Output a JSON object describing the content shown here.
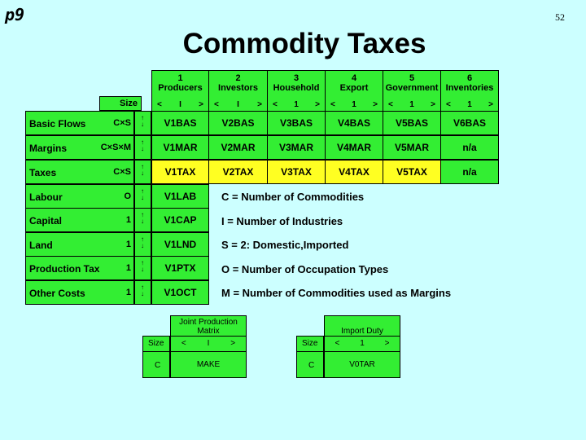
{
  "corner_label": "p9",
  "page_number": "52",
  "title": "Commodity Taxes",
  "size_label": "Size",
  "columns": [
    {
      "num": "1",
      "name": "Producers",
      "dim": "I"
    },
    {
      "num": "2",
      "name": "Investors",
      "dim": "I"
    },
    {
      "num": "3",
      "name": "Household",
      "dim": "1"
    },
    {
      "num": "4",
      "name": "Export",
      "dim": "1"
    },
    {
      "num": "5",
      "name": "Government",
      "dim": "1"
    },
    {
      "num": "6",
      "name": "Inventories",
      "dim": "1"
    }
  ],
  "rows": [
    {
      "label": "Basic Flows",
      "size": "C×S",
      "cells": [
        "V1BAS",
        "V2BAS",
        "V3BAS",
        "V4BAS",
        "V5BAS",
        "V6BAS"
      ]
    },
    {
      "label": "Margins",
      "size": "C×S×M",
      "cells": [
        "V1MAR",
        "V2MAR",
        "V3MAR",
        "V4MAR",
        "V5MAR",
        "n/a"
      ]
    },
    {
      "label": "Taxes",
      "size": "C×S",
      "cells": [
        "V1TAX",
        "V2TAX",
        "V3TAX",
        "V4TAX",
        "V5TAX",
        "n/a"
      ],
      "highlight": [
        0,
        1,
        2,
        3,
        4
      ]
    },
    {
      "label": "Labour",
      "size": "O",
      "cells": [
        "V1LAB"
      ]
    },
    {
      "label": "Capital",
      "size": "1",
      "cells": [
        "V1CAP"
      ]
    },
    {
      "label": "Land",
      "size": "1",
      "cells": [
        "V1LND"
      ]
    },
    {
      "label": "Production Tax",
      "size": "1",
      "cells": [
        "V1PTX"
      ]
    },
    {
      "label": "Other Costs",
      "size": "1",
      "cells": [
        "V1OCT"
      ]
    }
  ],
  "legend": [
    "C = Number of Commodities",
    "I  = Number of Industries",
    "S = 2: Domestic,Imported",
    "O = Number of Occupation Types",
    "M  =  Number of Commodities used as Margins"
  ],
  "make_matrix": {
    "title": "Joint Production Matrix",
    "size": "Size",
    "dim": "I",
    "row_size": "C",
    "cell": "MAKE"
  },
  "import_duty": {
    "title": "Import Duty",
    "size": "Size",
    "dim": "1",
    "row_size": "C",
    "cell": "V0TAR"
  },
  "arrow_left": "<",
  "arrow_right": ">"
}
